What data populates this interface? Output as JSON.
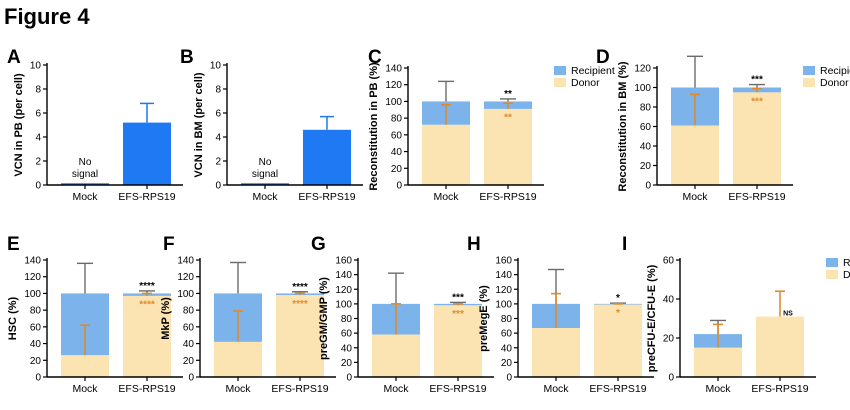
{
  "figure_title": "Figure 4",
  "colors": {
    "recipient": "#7BB3EA",
    "donor": "#FBE3B2",
    "efs_bar": "#1F79F2",
    "error_recipient": "#6B6B6B",
    "error_donor": "#E08A2B",
    "axis": "#000000"
  },
  "chart_data": [
    {
      "panel": "A",
      "type": "bar",
      "ylabel": "VCN in PB (per cell)",
      "ylim": [
        0,
        10
      ],
      "yticks": [
        0,
        2,
        4,
        6,
        8,
        10
      ],
      "categories": [
        "Mock",
        "EFS-RPS19"
      ],
      "values": [
        0,
        5.2
      ],
      "errors": [
        null,
        1.6
      ],
      "annotation": "No signal"
    },
    {
      "panel": "B",
      "type": "bar",
      "ylabel": "VCN in BM (per cell)",
      "ylim": [
        0,
        10
      ],
      "yticks": [
        0,
        2,
        4,
        6,
        8,
        10
      ],
      "categories": [
        "Mock",
        "EFS-RPS19"
      ],
      "values": [
        0,
        4.6
      ],
      "errors": [
        null,
        1.1
      ],
      "annotation": "No signal"
    },
    {
      "panel": "C",
      "type": "bar",
      "ylabel": "Reconstitution in PB (%)",
      "ylim": [
        0,
        140
      ],
      "yticks": [
        0,
        20,
        40,
        60,
        80,
        100,
        120,
        140
      ],
      "categories": [
        "Mock",
        "EFS-RPS19"
      ],
      "legend": [
        "Recipient",
        "Donor"
      ],
      "donor": [
        72,
        91
      ],
      "donor_err": [
        24,
        7
      ],
      "total_err": [
        24,
        3
      ],
      "sig_recipient": "**",
      "sig_donor": "**"
    },
    {
      "panel": "D",
      "type": "bar",
      "ylabel": "Reconstitution in BM (%)",
      "ylim": [
        0,
        120
      ],
      "yticks": [
        0,
        20,
        40,
        60,
        80,
        100,
        120
      ],
      "categories": [
        "Mock",
        "EFS-RPS19"
      ],
      "legend": [
        "Recipient",
        "Donor"
      ],
      "donor": [
        61,
        95
      ],
      "donor_err": [
        32,
        4
      ],
      "total_err": [
        32,
        3
      ],
      "sig_recipient": "***",
      "sig_donor": "***"
    },
    {
      "panel": "E",
      "type": "bar",
      "ylabel": "HSC (%)",
      "ylim": [
        0,
        140
      ],
      "yticks": [
        0,
        20,
        40,
        60,
        80,
        100,
        120,
        140
      ],
      "categories": [
        "Mock",
        "EFS-RPS19"
      ],
      "donor": [
        26,
        97
      ],
      "donor_err": [
        36,
        3
      ],
      "total_err": [
        36,
        3
      ],
      "sig_recipient": "****",
      "sig_donor": "****"
    },
    {
      "panel": "F",
      "type": "bar",
      "ylabel": "MkP (%)",
      "ylim": [
        0,
        140
      ],
      "yticks": [
        0,
        20,
        40,
        60,
        80,
        100,
        120,
        140
      ],
      "categories": [
        "Mock",
        "EFS-RPS19"
      ],
      "donor": [
        42,
        98
      ],
      "donor_err": [
        37,
        2
      ],
      "total_err": [
        37,
        2
      ],
      "sig_recipient": "****",
      "sig_donor": "****"
    },
    {
      "panel": "G",
      "type": "bar",
      "ylabel": "preGM/GMP (%)",
      "ylim": [
        0,
        160
      ],
      "yticks": [
        0,
        20,
        40,
        60,
        80,
        100,
        120,
        140,
        160
      ],
      "categories": [
        "Mock",
        "EFS-RPS19"
      ],
      "donor": [
        58,
        98
      ],
      "donor_err": [
        42,
        2
      ],
      "total_err": [
        42,
        2
      ],
      "sig_recipient": "***",
      "sig_donor": "***"
    },
    {
      "panel": "H",
      "type": "bar",
      "ylabel": "preMegE (%)",
      "ylim": [
        0,
        160
      ],
      "yticks": [
        0,
        20,
        40,
        60,
        80,
        100,
        120,
        140,
        160
      ],
      "categories": [
        "Mock",
        "EFS-RPS19"
      ],
      "donor": [
        67,
        99
      ],
      "donor_err": [
        47,
        1
      ],
      "total_err": [
        47,
        1
      ],
      "sig_recipient": "*",
      "sig_donor": "*"
    },
    {
      "panel": "I",
      "type": "bar",
      "ylabel": "preCFU-E/CFU-E (%)",
      "ylim": [
        0,
        60
      ],
      "yticks": [
        0,
        20,
        40,
        60
      ],
      "categories": [
        "Mock",
        "EFS-RPS19"
      ],
      "legend": [
        "Recipient",
        "Donor"
      ],
      "donor": [
        15,
        31
      ],
      "total": [
        22,
        31
      ],
      "donor_err": [
        12,
        13
      ],
      "total_err": [
        7,
        0
      ],
      "sig_donor": "NS"
    }
  ]
}
